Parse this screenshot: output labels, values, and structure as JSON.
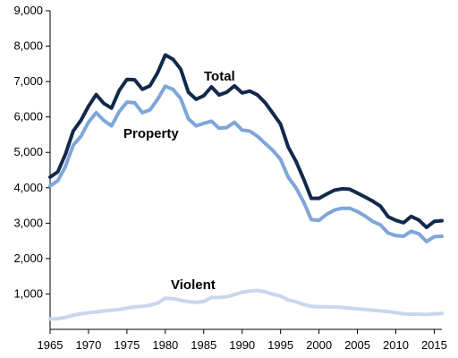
{
  "chart_data": {
    "type": "line",
    "title": "",
    "xlabel": "",
    "ylabel": "",
    "xlim": [
      1965,
      2016
    ],
    "ylim": [
      0,
      9000
    ],
    "grid": false,
    "legend": "inline-labels",
    "x_ticks": [
      "1965",
      "1970",
      "1975",
      "1980",
      "1985",
      "1990",
      "1995",
      "2000",
      "2005",
      "2010",
      "2015"
    ],
    "y_ticks": [
      "1,000",
      "2,000",
      "3,000",
      "4,000",
      "5,000",
      "6,000",
      "7,000",
      "8,000",
      "9,000"
    ],
    "x": [
      1965,
      1966,
      1967,
      1968,
      1969,
      1970,
      1971,
      1972,
      1973,
      1974,
      1975,
      1976,
      1977,
      1978,
      1979,
      1980,
      1981,
      1982,
      1983,
      1984,
      1985,
      1986,
      1987,
      1988,
      1989,
      1990,
      1991,
      1992,
      1993,
      1994,
      1995,
      1996,
      1997,
      1998,
      1999,
      2000,
      2001,
      2002,
      2003,
      2004,
      2005,
      2006,
      2007,
      2008,
      2009,
      2010,
      2011,
      2012,
      2013,
      2014,
      2015,
      2016
    ],
    "series": [
      {
        "name": "Total",
        "color": "#13294b",
        "values": [
          4300,
          4450,
          4950,
          5600,
          5900,
          6300,
          6630,
          6380,
          6250,
          6750,
          7060,
          7050,
          6780,
          6880,
          7250,
          7750,
          7630,
          7350,
          6700,
          6500,
          6600,
          6850,
          6620,
          6700,
          6880,
          6680,
          6730,
          6620,
          6400,
          6100,
          5800,
          5150,
          4750,
          4250,
          3700,
          3700,
          3820,
          3930,
          3970,
          3960,
          3850,
          3740,
          3620,
          3480,
          3180,
          3080,
          3010,
          3190,
          3090,
          2880,
          3050,
          3070
        ]
      },
      {
        "name": "Property",
        "color": "#7ea6d8",
        "values": [
          4050,
          4200,
          4600,
          5200,
          5450,
          5850,
          6120,
          5900,
          5750,
          6150,
          6420,
          6400,
          6120,
          6200,
          6500,
          6870,
          6780,
          6520,
          5950,
          5750,
          5820,
          5880,
          5680,
          5700,
          5850,
          5630,
          5600,
          5450,
          5250,
          5050,
          4800,
          4300,
          4000,
          3600,
          3100,
          3080,
          3250,
          3370,
          3420,
          3420,
          3330,
          3200,
          3050,
          2950,
          2720,
          2650,
          2630,
          2770,
          2700,
          2480,
          2620,
          2630
        ]
      },
      {
        "name": "Violent",
        "color": "#c8d6ee",
        "values": [
          290,
          300,
          340,
          400,
          440,
          470,
          490,
          520,
          540,
          560,
          600,
          640,
          650,
          680,
          740,
          880,
          870,
          820,
          780,
          760,
          790,
          900,
          900,
          920,
          980,
          1050,
          1080,
          1100,
          1060,
          990,
          940,
          830,
          780,
          700,
          650,
          640,
          640,
          630,
          620,
          600,
          580,
          560,
          540,
          520,
          500,
          470,
          440,
          430,
          430,
          420,
          440,
          450
        ]
      }
    ]
  }
}
